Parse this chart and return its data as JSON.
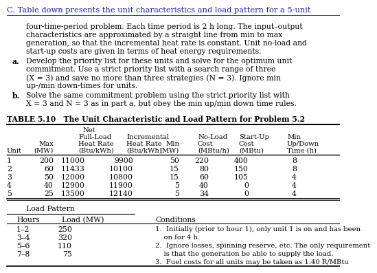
{
  "title": "C. Table down presents the unit characteristics and load pattern for a 5-unit",
  "body": [
    "four-time-period problem. Each time period is 2 h long. The input–output",
    "characteristics are approximated by a straight line from min to max",
    "generation, so that the incremental heat rate is constant. Unit no-load and",
    "start-up costs are given in terms of heat energy requirements."
  ],
  "item_a_label": "a.",
  "item_a": [
    "Develop the priority list for these units and solve for the optimum unit",
    "commitment. Use a strict priority list with a search range of three",
    "(X = 3) and save no more than three strategies (N = 3). Ignore min",
    "up-/min down-times for units."
  ],
  "item_b_label": "b.",
  "item_b": [
    "Solve the same commitment problem using the strict priority list with",
    "X = 3 and N = 3 as in part a, but obey the min up/min down time rules."
  ],
  "table_title": "TABLE 5.10   The Unit Characteristic and Load Pattern for Problem 5.2",
  "unit_data": [
    [
      1,
      200,
      11000,
      9900,
      50,
      220,
      400,
      8
    ],
    [
      2,
      60,
      11433,
      10100,
      15,
      80,
      150,
      8
    ],
    [
      3,
      50,
      12000,
      10800,
      15,
      60,
      105,
      4
    ],
    [
      4,
      40,
      12900,
      11900,
      5,
      40,
      0,
      4
    ],
    [
      5,
      25,
      13500,
      12140,
      5,
      34,
      0,
      4
    ]
  ],
  "load_data": [
    [
      "1–2",
      "250"
    ],
    [
      "3–4",
      "320"
    ],
    [
      "5–6",
      "110"
    ],
    [
      "7–8",
      "75"
    ]
  ],
  "conditions": [
    "1.  Initially (prior to hour 1), only unit 1 is on and has been",
    "    on for 4 h.",
    "2.  Ignore losses, spinning reserve, etc. The only requirement",
    "    is that the generation be able to supply the load.",
    "3.  Fuel costs for all units may be taken as 1.40 R/MBtu"
  ],
  "bg_color": "#ffffff",
  "text_color": "#000000",
  "title_color": "#1a1aaa"
}
